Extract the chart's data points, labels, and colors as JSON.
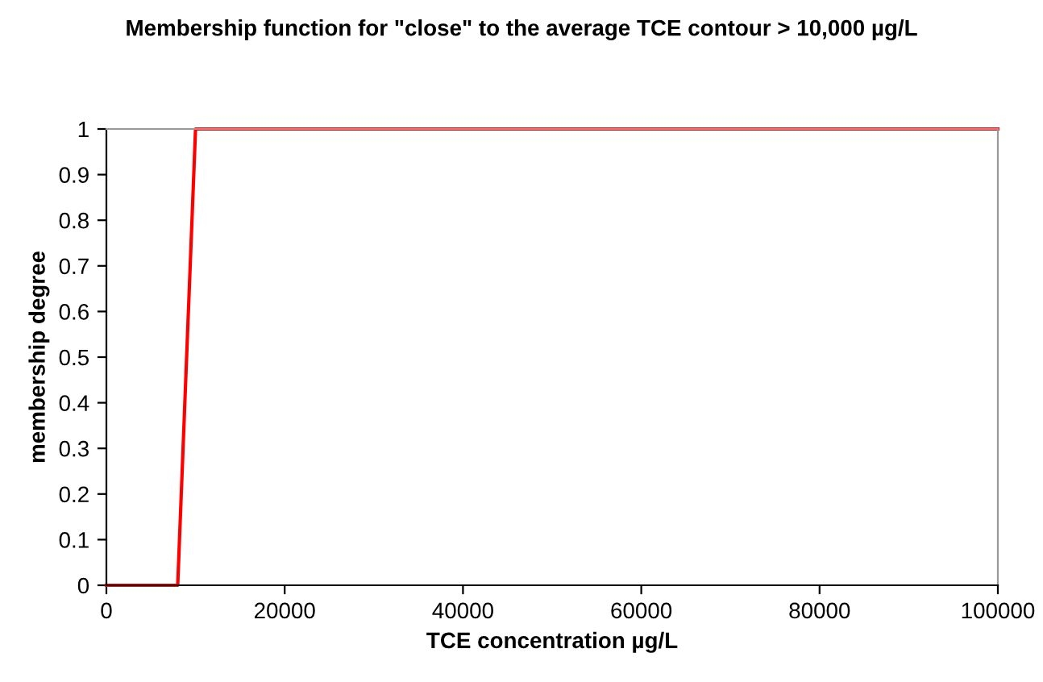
{
  "chart_data": {
    "type": "line",
    "title": "Membership function for \"close\" to the average TCE contour > 10,000 µg/L",
    "xlabel": "TCE concentration µg/L",
    "ylabel": "membership degree",
    "series": [
      {
        "color": "#ff0000",
        "x": [
          0,
          8000,
          10000,
          100000
        ],
        "values": [
          0,
          0,
          1,
          1
        ]
      }
    ],
    "xlim": [
      0,
      100000
    ],
    "xticks": [
      0,
      20000,
      40000,
      60000,
      80000,
      100000
    ],
    "ylim": [
      0,
      1
    ],
    "yticks": [
      0,
      0.1,
      0.2,
      0.3,
      0.4,
      0.5,
      0.6,
      0.7,
      0.8,
      0.9,
      1
    ],
    "grid": false,
    "marker": "none",
    "line_style": "solid"
  }
}
